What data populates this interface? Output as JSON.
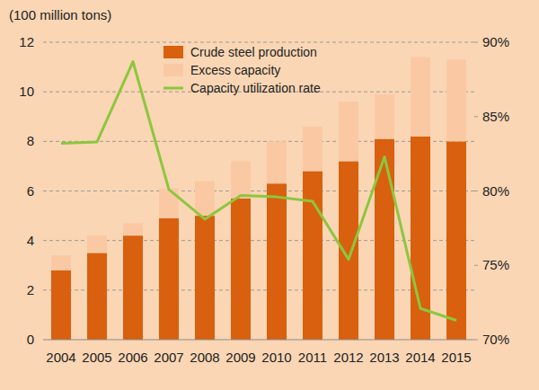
{
  "chart_data": {
    "type": "bar",
    "y_label": "(100 million tons)",
    "categories": [
      "2004",
      "2005",
      "2006",
      "2007",
      "2008",
      "2009",
      "2010",
      "2011",
      "2012",
      "2013",
      "2014",
      "2015"
    ],
    "series": [
      {
        "name": "Crude steel production",
        "type": "bar",
        "color": "#d8600e",
        "values": [
          2.8,
          3.5,
          4.2,
          4.9,
          5.0,
          5.7,
          6.3,
          6.8,
          7.2,
          8.1,
          8.2,
          8.0
        ]
      },
      {
        "name": "Excess capacity",
        "type": "bar",
        "color": "#fac9a4",
        "values": [
          0.6,
          0.7,
          0.5,
          1.2,
          1.4,
          1.5,
          1.7,
          1.8,
          2.4,
          1.8,
          3.2,
          3.3
        ]
      },
      {
        "name": "Capacity utilization rate",
        "type": "line",
        "axis": "y2",
        "color": "#8dc63f",
        "line_style": "solid",
        "marker": "none",
        "values": [
          83.2,
          83.3,
          88.7,
          80.1,
          78.1,
          79.7,
          79.6,
          79.3,
          75.4,
          82.3,
          72.1,
          71.3
        ]
      }
    ],
    "stacked": true,
    "ylim": [
      0,
      12
    ],
    "yticks": [
      0,
      2,
      4,
      6,
      8,
      10,
      12
    ],
    "y2lim": [
      70,
      90
    ],
    "y2ticks": [
      {
        "value": 70,
        "label": "70%"
      },
      {
        "value": 75,
        "label": "75%"
      },
      {
        "value": 80,
        "label": "80%"
      },
      {
        "value": 85,
        "label": "85%"
      },
      {
        "value": 90,
        "label": "90%"
      }
    ],
    "grid": true,
    "legend": "top"
  }
}
